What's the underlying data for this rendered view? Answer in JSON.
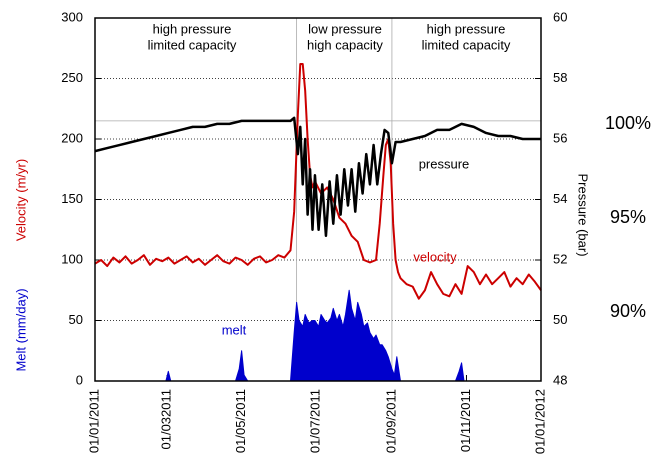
{
  "chart_data": {
    "type": "line",
    "y_label": "Velocity (m/yr)",
    "y_label2": "Melt (mm/day)",
    "y2_label": "Pressure (bar)",
    "xlim": [
      0,
      365
    ],
    "xticks": [
      {
        "value": 0,
        "label": "01/01/2011"
      },
      {
        "value": 59,
        "label": "01/032011"
      },
      {
        "value": 120,
        "label": "01/05/2011"
      },
      {
        "value": 181,
        "label": "01/07/2011"
      },
      {
        "value": 243,
        "label": "01/09/2011"
      },
      {
        "value": 304,
        "label": "01/11/2011"
      },
      {
        "value": 365,
        "label": "01/01/2012"
      }
    ],
    "ylim": [
      0,
      300
    ],
    "yticks": [
      0,
      50,
      100,
      150,
      200,
      250,
      300
    ],
    "y2lim": [
      48,
      60
    ],
    "y2ticks": [
      48,
      50,
      52,
      54,
      56,
      58,
      60
    ],
    "grid": true,
    "reference_lines": {
      "x": [
        165,
        243
      ],
      "y2": [
        56.6
      ]
    },
    "annotations": [
      "high pressure",
      "limited capacity",
      "low pressure",
      "high capacity",
      "high pressure",
      "limited capacity"
    ],
    "right_labels": [
      "100%",
      "95%",
      "90%"
    ],
    "series": [
      {
        "name": "melt",
        "color": "#0000cc",
        "fill": true,
        "x": [
          0,
          55,
          58,
          60,
          62,
          65,
          115,
          118,
          120,
          122,
          125,
          160,
          163,
          165,
          167,
          170,
          172,
          175,
          178,
          180,
          183,
          185,
          188,
          190,
          193,
          195,
          198,
          200,
          203,
          205,
          208,
          210,
          213,
          215,
          218,
          220,
          223,
          225,
          228,
          230,
          233,
          235,
          238,
          240,
          243,
          245,
          247,
          250,
          295,
          298,
          300,
          302,
          305,
          365
        ],
        "values": [
          0,
          0,
          0,
          8,
          0,
          0,
          0,
          10,
          25,
          5,
          0,
          0,
          40,
          65,
          50,
          45,
          55,
          48,
          50,
          50,
          45,
          55,
          50,
          48,
          52,
          60,
          50,
          55,
          45,
          55,
          75,
          60,
          50,
          65,
          55,
          45,
          48,
          40,
          35,
          38,
          30,
          30,
          25,
          20,
          10,
          5,
          20,
          0,
          0,
          8,
          15,
          0,
          0,
          0
        ]
      },
      {
        "name": "velocity",
        "color": "#cc0000",
        "x": [
          0,
          5,
          10,
          15,
          20,
          25,
          30,
          35,
          40,
          45,
          50,
          55,
          60,
          65,
          70,
          75,
          80,
          85,
          90,
          95,
          100,
          105,
          110,
          115,
          120,
          125,
          130,
          135,
          140,
          145,
          150,
          155,
          160,
          163,
          166,
          168,
          170,
          172,
          174,
          176,
          178,
          180,
          185,
          190,
          195,
          200,
          205,
          210,
          215,
          220,
          225,
          230,
          233,
          236,
          238,
          240,
          242,
          244,
          246,
          248,
          250,
          255,
          260,
          265,
          270,
          275,
          280,
          285,
          290,
          295,
          300,
          305,
          310,
          315,
          320,
          325,
          330,
          335,
          340,
          345,
          350,
          355,
          360,
          365
        ],
        "values": [
          97,
          100,
          95,
          102,
          98,
          103,
          97,
          100,
          104,
          96,
          101,
          99,
          102,
          97,
          100,
          103,
          98,
          101,
          96,
          100,
          104,
          99,
          97,
          102,
          100,
          96,
          101,
          103,
          98,
          100,
          104,
          102,
          108,
          140,
          220,
          262,
          262,
          240,
          200,
          170,
          160,
          165,
          155,
          160,
          150,
          135,
          130,
          120,
          115,
          100,
          98,
          100,
          130,
          170,
          195,
          200,
          180,
          130,
          100,
          90,
          85,
          80,
          78,
          68,
          75,
          90,
          80,
          72,
          70,
          80,
          72,
          95,
          90,
          80,
          88,
          80,
          85,
          90,
          78,
          85,
          80,
          88,
          82,
          75
        ]
      },
      {
        "name": "pressure",
        "color": "#000000",
        "axis": "y2",
        "x": [
          0,
          10,
          20,
          30,
          40,
          50,
          60,
          70,
          80,
          90,
          100,
          110,
          120,
          130,
          140,
          150,
          160,
          163,
          166,
          168,
          170,
          172,
          174,
          176,
          178,
          180,
          183,
          186,
          189,
          192,
          195,
          198,
          201,
          204,
          207,
          210,
          213,
          216,
          219,
          222,
          225,
          228,
          231,
          234,
          237,
          240,
          243,
          246,
          250,
          260,
          270,
          280,
          290,
          300,
          310,
          320,
          330,
          340,
          350,
          360,
          365
        ],
        "values": [
          55.6,
          55.7,
          55.8,
          55.9,
          56.0,
          56.1,
          56.2,
          56.3,
          56.4,
          56.4,
          56.5,
          56.5,
          56.6,
          56.6,
          56.6,
          56.6,
          56.6,
          56.7,
          55.5,
          56.4,
          54.5,
          56.0,
          53.5,
          55.0,
          53.0,
          54.8,
          53.0,
          54.5,
          52.8,
          54.6,
          53.2,
          54.8,
          53.5,
          55.0,
          53.8,
          55.0,
          53.6,
          55.2,
          54.2,
          55.5,
          54.5,
          55.8,
          54.5,
          55.5,
          56.3,
          56.2,
          55.2,
          55.9,
          55.9,
          56.0,
          56.1,
          56.3,
          56.3,
          56.5,
          56.4,
          56.2,
          56.1,
          56.1,
          56.0,
          56.0,
          56.0
        ]
      }
    ]
  }
}
